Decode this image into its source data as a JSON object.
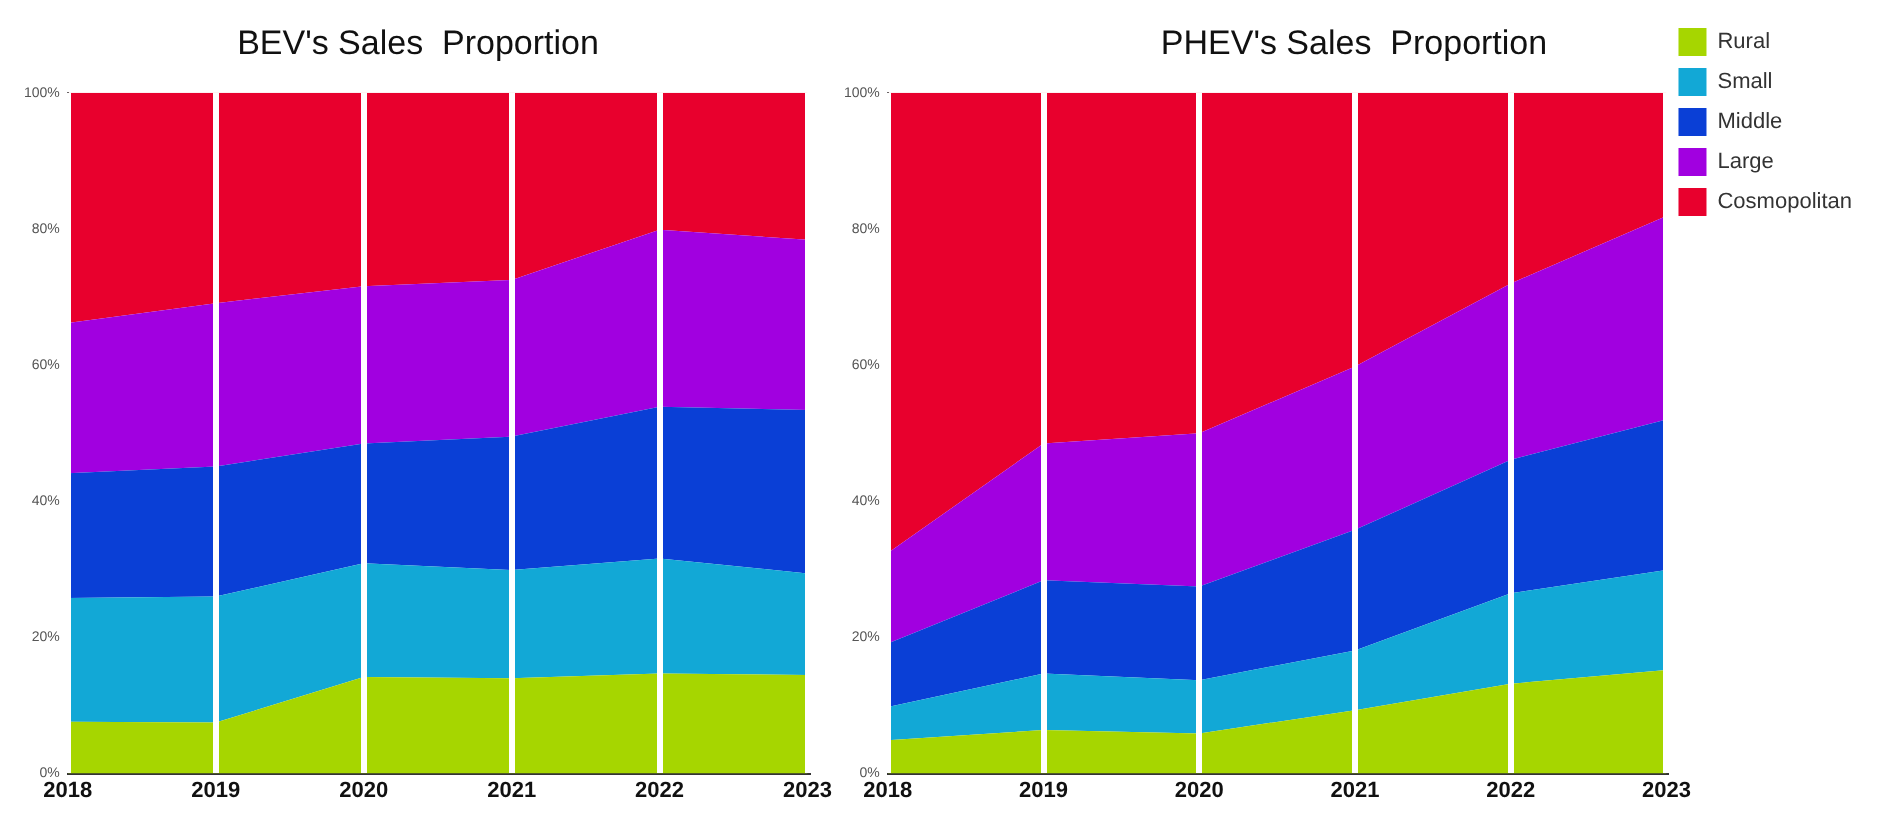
{
  "chart_data": [
    {
      "type": "area",
      "title": "BEV's Sales  Proportion",
      "categories": [
        "2018",
        "2019",
        "2020",
        "2021",
        "2022",
        "2023"
      ],
      "stacked": true,
      "ylim": [
        0,
        100
      ],
      "yticks": [
        {
          "value": 0,
          "label": "0%"
        },
        {
          "value": 20,
          "label": "20%"
        },
        {
          "value": 40,
          "label": "40%"
        },
        {
          "value": 60,
          "label": "60%"
        },
        {
          "value": 80,
          "label": "80%"
        },
        {
          "value": 100,
          "label": "100%"
        }
      ],
      "grid": "x",
      "legend": false,
      "series": [
        {
          "color": "#a6d600",
          "values": [
            7.6,
            7.5,
            14.2,
            14,
            14.7,
            14.5
          ]
        },
        {
          "color": "#12a8d6",
          "values": [
            18.2,
            18.5,
            16.7,
            15.9,
            16.9,
            14.9
          ]
        },
        {
          "color": "#0a3fd6",
          "values": [
            18.3,
            19.1,
            17.6,
            19.6,
            22.3,
            24
          ]
        },
        {
          "color": "#a100e0",
          "values": [
            22.1,
            24,
            23.1,
            23,
            26,
            25
          ]
        },
        {
          "color": "#e8002d",
          "values": [
            33.8,
            30.9,
            28.4,
            27.5,
            20.1,
            21.6
          ]
        }
      ]
    },
    {
      "type": "area",
      "title": "PHEV's Sales  Proportion",
      "categories": [
        "2018",
        "2019",
        "2020",
        "2021",
        "2022",
        "2023"
      ],
      "stacked": true,
      "ylim": [
        0,
        100
      ],
      "yticks": [
        {
          "value": 0,
          "label": "0%"
        },
        {
          "value": 20,
          "label": "20%"
        },
        {
          "value": 40,
          "label": "40%"
        },
        {
          "value": 60,
          "label": "60%"
        },
        {
          "value": 80,
          "label": "80%"
        },
        {
          "value": 100,
          "label": "100%"
        }
      ],
      "grid": "x",
      "legend": "top right",
      "series": [
        {
          "name": "Rural",
          "color": "#a6d600",
          "values": [
            4.9,
            6.4,
            5.9,
            9.3,
            13.2,
            15.2
          ]
        },
        {
          "name": "Small",
          "color": "#12a8d6",
          "values": [
            4.9,
            8.3,
            7.8,
            8.8,
            13.3,
            14.7
          ]
        },
        {
          "name": "Middle",
          "color": "#0a3fd6",
          "values": [
            9.3,
            13.7,
            13.8,
            17.7,
            19.6,
            22.1
          ]
        },
        {
          "name": "Large",
          "color": "#a100e0",
          "values": [
            13.3,
            20.1,
            22.5,
            24,
            25.9,
            29.9
          ]
        },
        {
          "name": "Cosmopolitan",
          "color": "#e8002d",
          "values": [
            67.6,
            51.5,
            50,
            40.2,
            28,
            18.1
          ]
        }
      ]
    }
  ]
}
